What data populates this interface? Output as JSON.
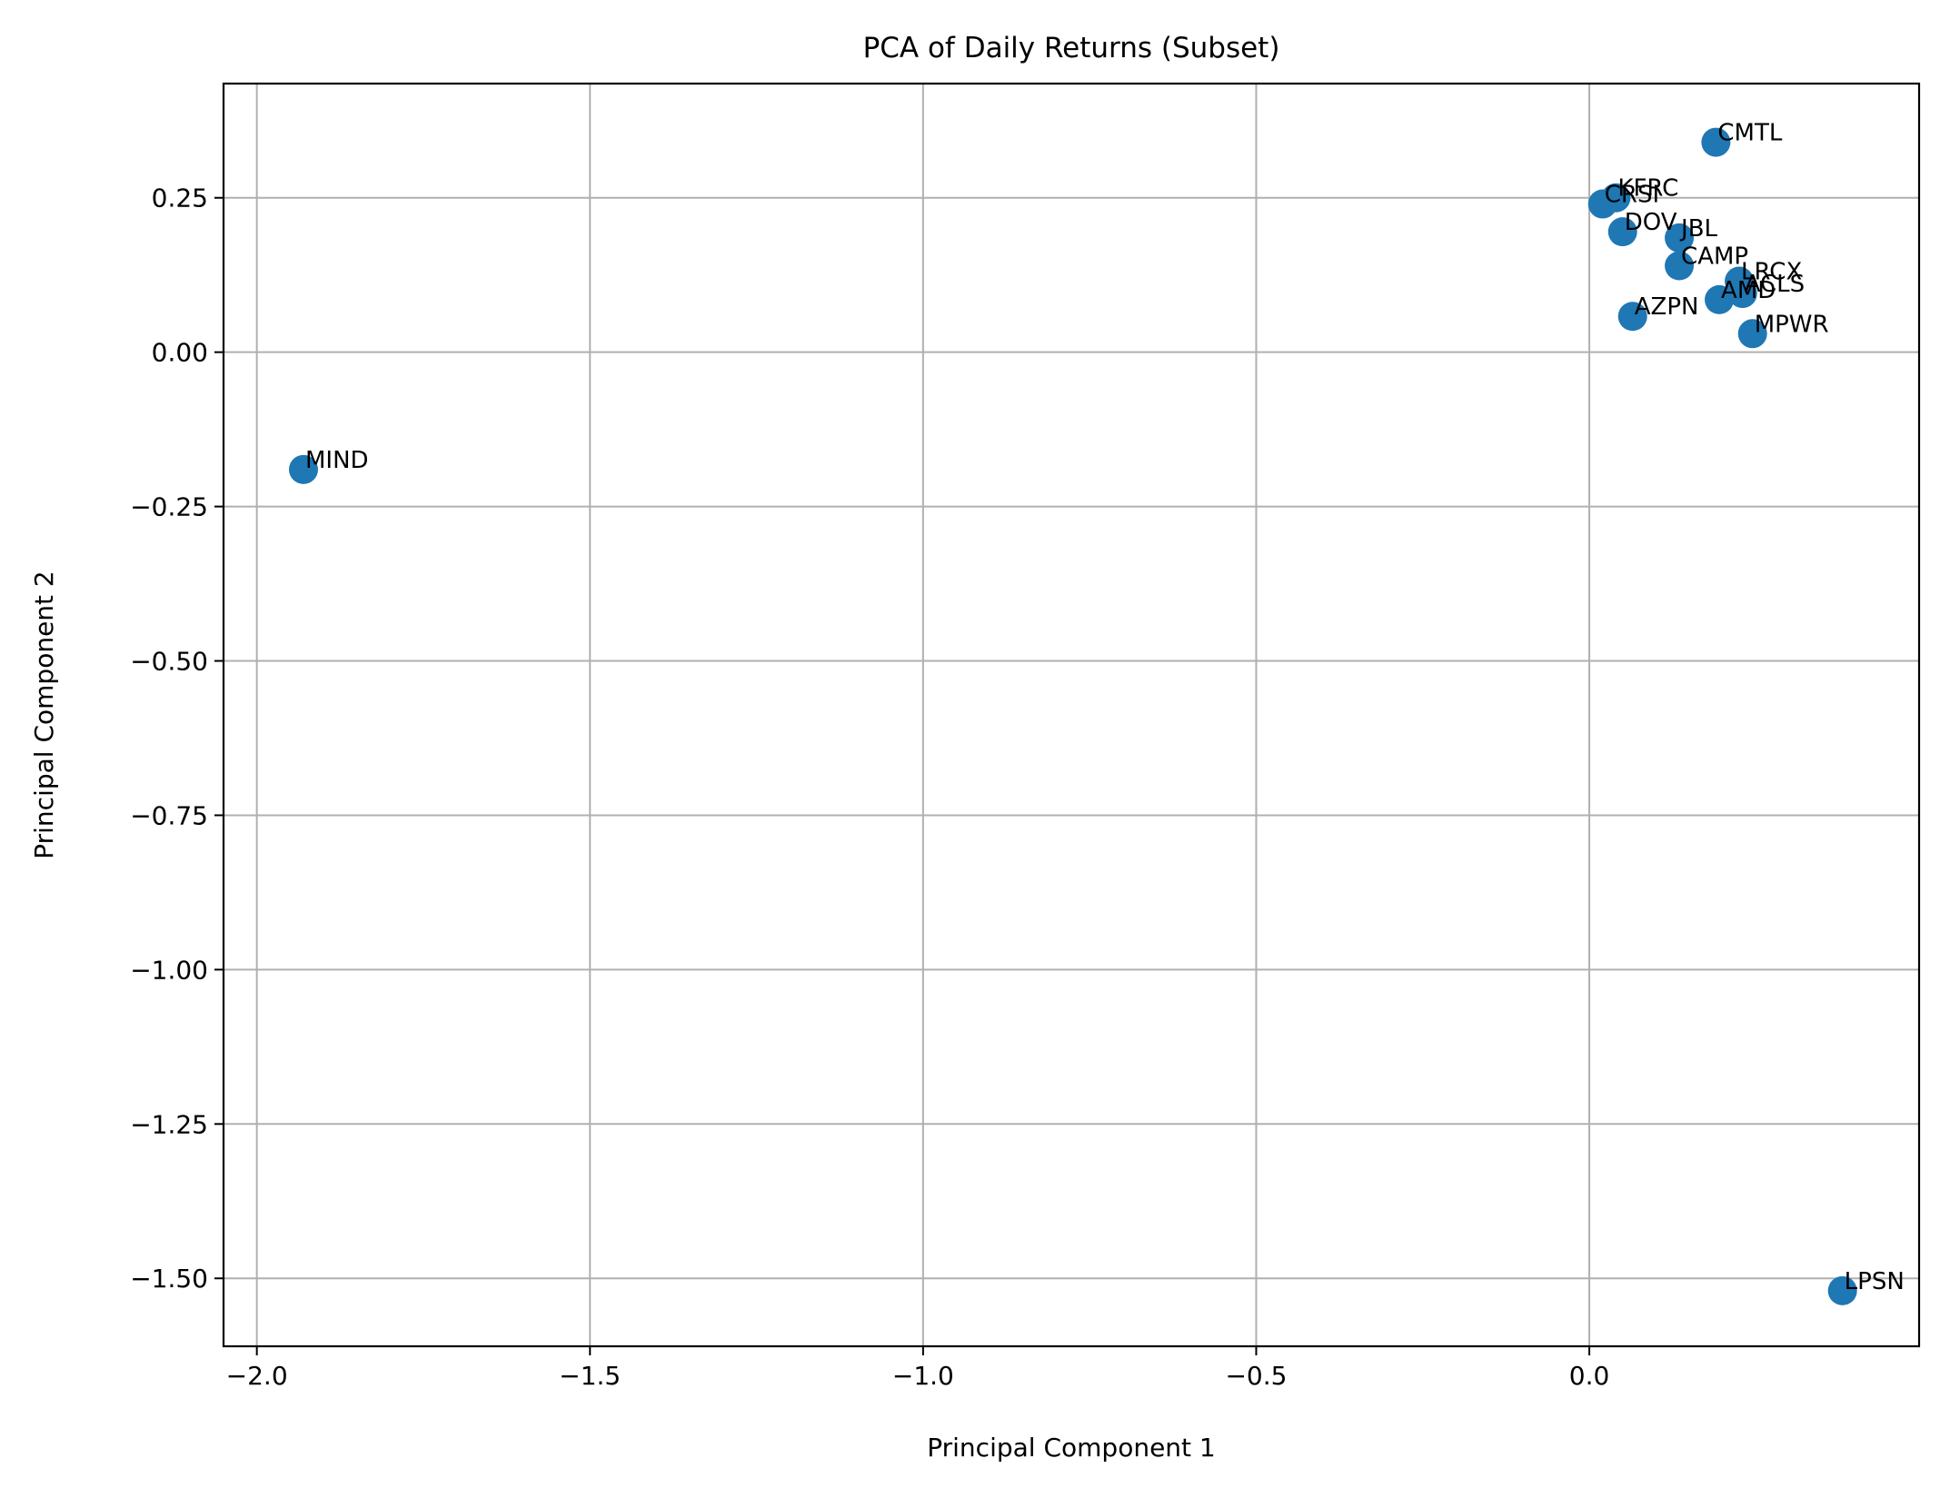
{
  "chart_data": {
    "type": "scatter",
    "title": "PCA of Daily Returns (Subset)",
    "xlabel": "Principal Component 1",
    "ylabel": "Principal Component 2",
    "xlim": [
      -2.05,
      0.495
    ],
    "ylim": [
      -1.61,
      0.435
    ],
    "grid": true,
    "x_ticks": [
      -2.0,
      -1.5,
      -1.0,
      -0.5,
      0.0
    ],
    "x_tick_labels": [
      "−2.0",
      "−1.5",
      "−1.0",
      "−0.5",
      "0.0"
    ],
    "y_ticks": [
      0.25,
      0.0,
      -0.25,
      -0.5,
      -0.75,
      -1.0,
      -1.25,
      -1.5
    ],
    "y_tick_labels": [
      "0.25",
      "0.00",
      "−0.25",
      "−0.50",
      "−0.75",
      "−1.00",
      "−1.25",
      "−1.50"
    ],
    "marker_color": "#1f77b4",
    "points": [
      {
        "label": "CMTL",
        "x": 0.19,
        "y": 0.34
      },
      {
        "label": "KFRC",
        "x": 0.04,
        "y": 0.25
      },
      {
        "label": "CRSI",
        "x": 0.02,
        "y": 0.24
      },
      {
        "label": "DOV",
        "x": 0.05,
        "y": 0.195
      },
      {
        "label": "JBL",
        "x": 0.135,
        "y": 0.185
      },
      {
        "label": "CAMP",
        "x": 0.135,
        "y": 0.14
      },
      {
        "label": "LRCX",
        "x": 0.225,
        "y": 0.115
      },
      {
        "label": "ACLS",
        "x": 0.23,
        "y": 0.095
      },
      {
        "label": "AMD",
        "x": 0.195,
        "y": 0.085
      },
      {
        "label": "AZPN",
        "x": 0.065,
        "y": 0.058
      },
      {
        "label": "MPWR",
        "x": 0.245,
        "y": 0.03
      },
      {
        "label": "MIND",
        "x": -1.93,
        "y": -0.19
      },
      {
        "label": "LPSN",
        "x": 0.38,
        "y": -1.52
      }
    ]
  }
}
